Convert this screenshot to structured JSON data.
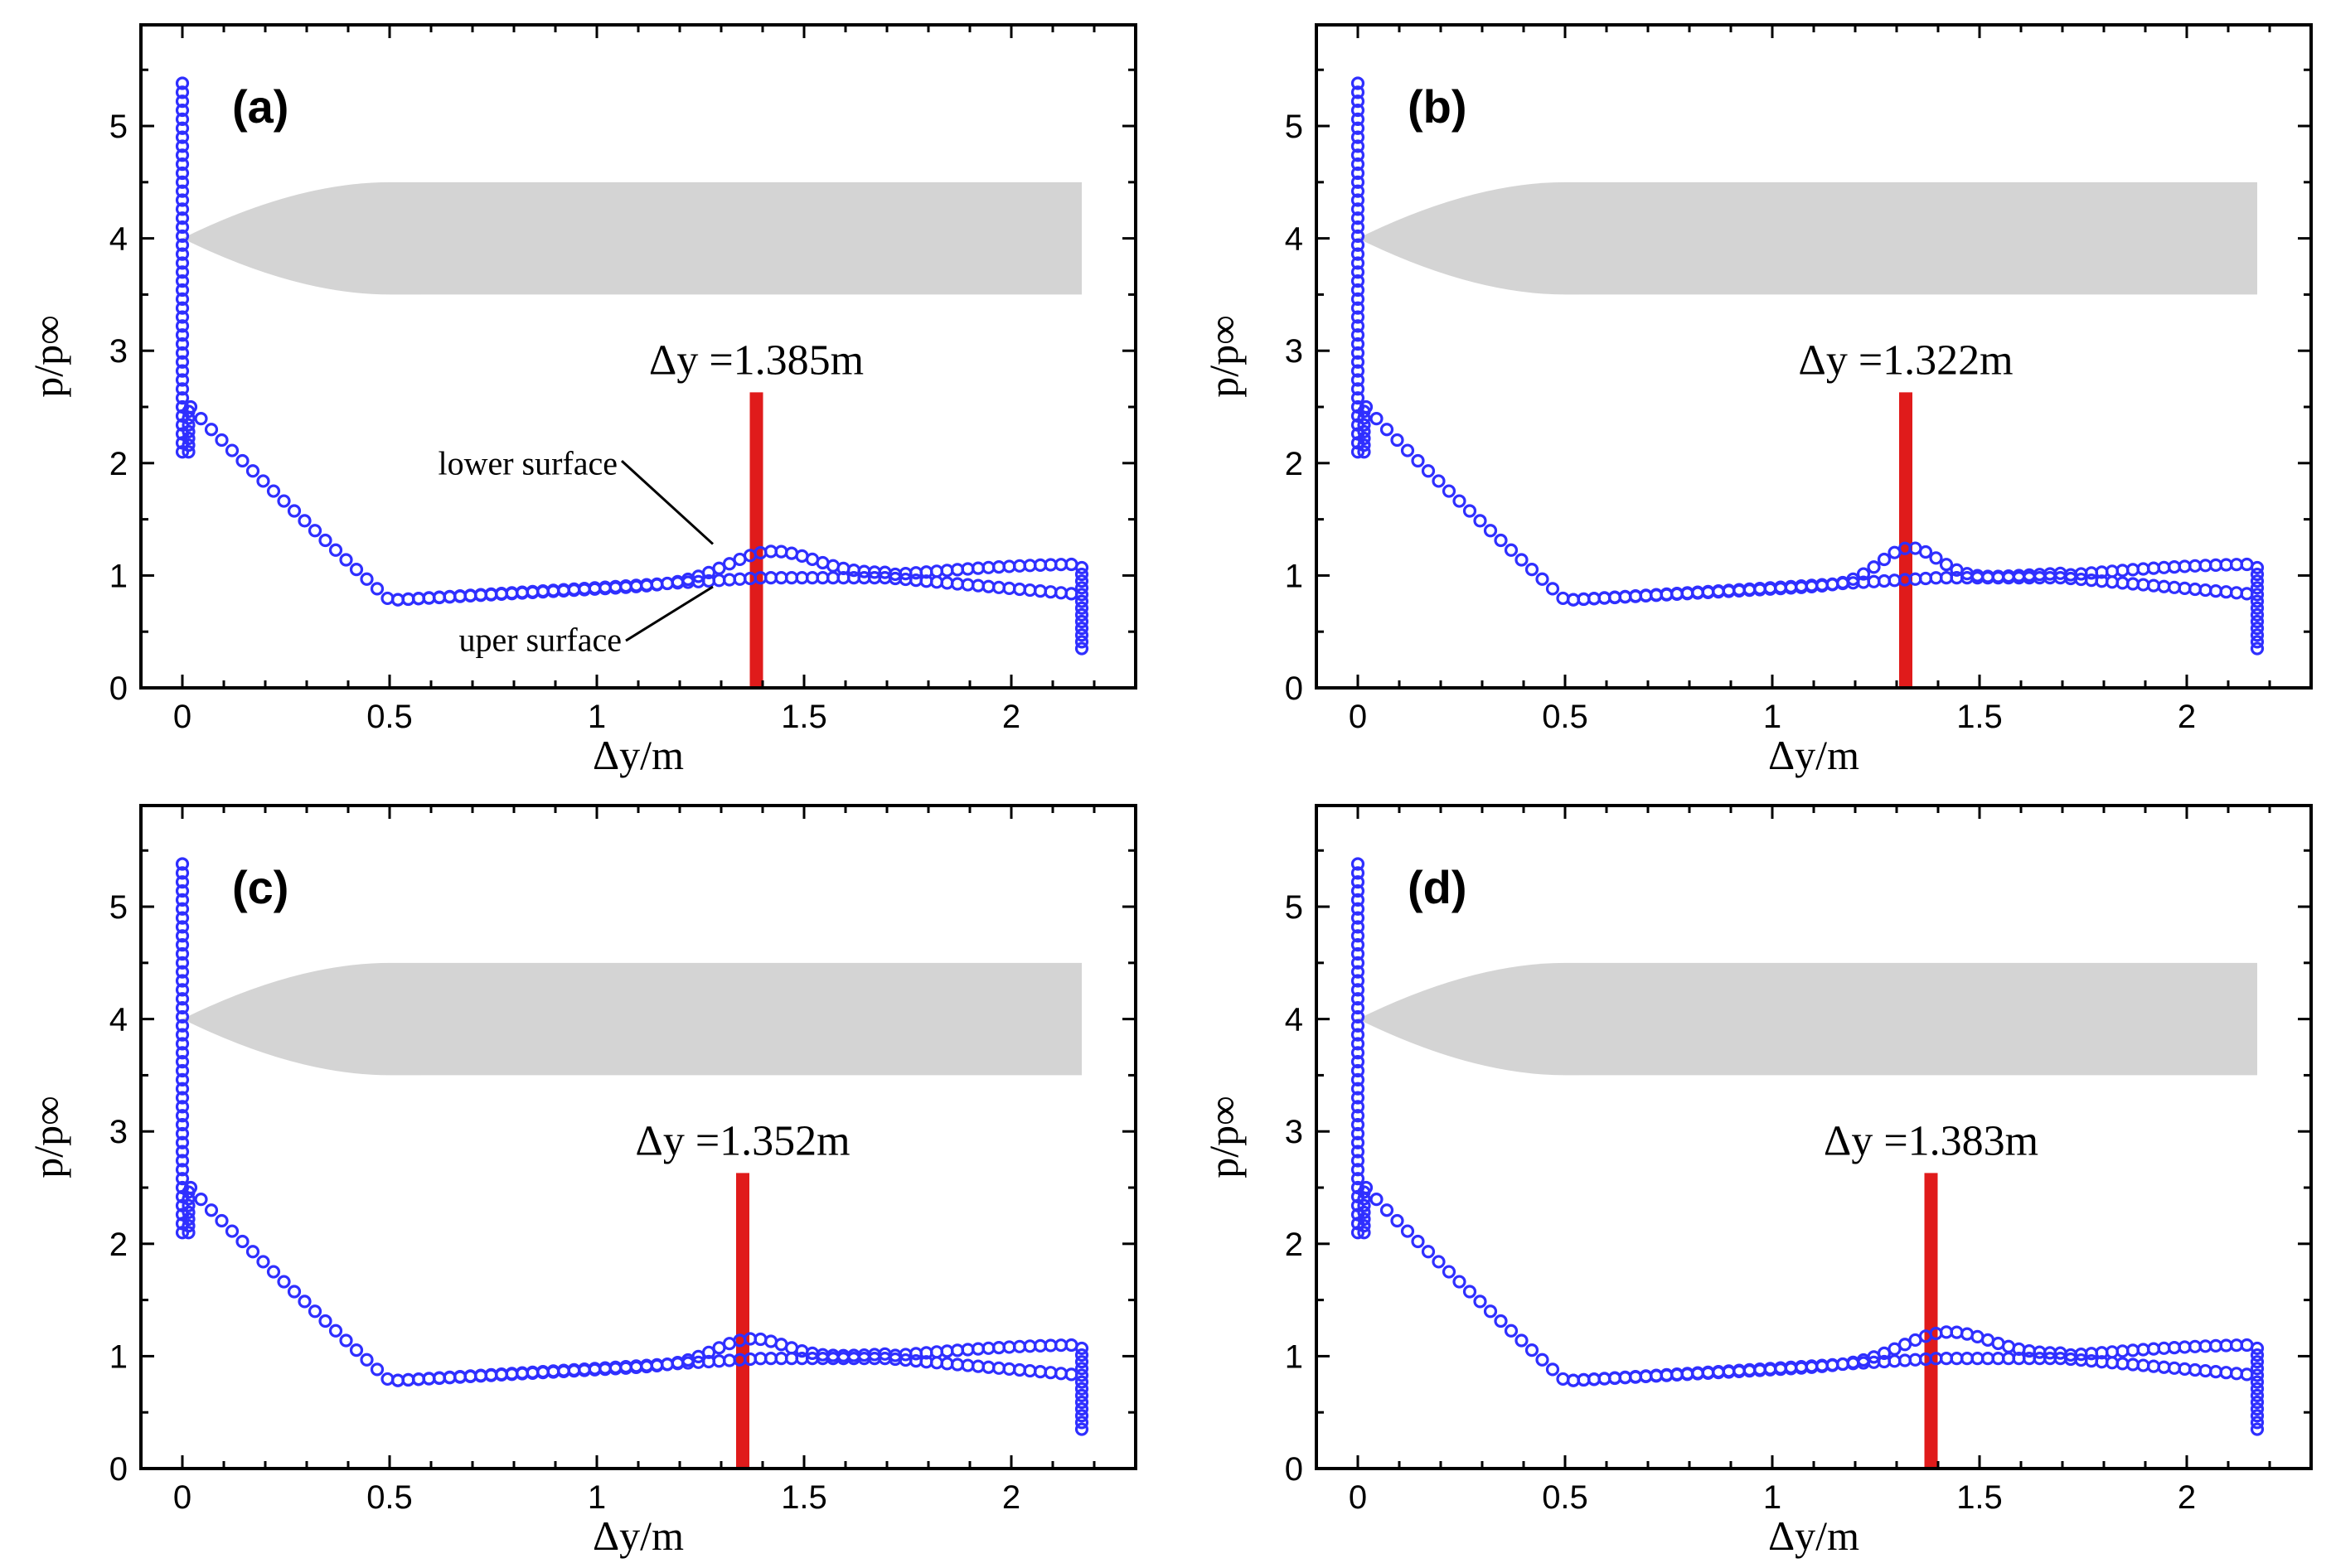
{
  "chart_data": [
    {
      "type": "scatter",
      "panel_label": "(a)",
      "xlabel": "Δy/m",
      "ylabel": "p/p∞",
      "xlim": [
        -0.1,
        2.3
      ],
      "ylim": [
        0,
        5.9
      ],
      "x_ticks": [
        0,
        0.5,
        1,
        1.5,
        2
      ],
      "x_tick_labels": [
        "0",
        "0.5",
        "1",
        "1.5",
        "2"
      ],
      "y_ticks": [
        0,
        1,
        2,
        3,
        4,
        5
      ],
      "y_tick_labels": [
        "0",
        "1",
        "2",
        "3",
        "4",
        "5"
      ],
      "marker_position": 1.385,
      "marker_label": "Δy =1.385m",
      "bump": {
        "x": 1.42,
        "amplitude": 0.25,
        "width": 0.15
      },
      "legend": {
        "lower": "lower surface",
        "upper": "uper surface"
      },
      "series": [
        {
          "name": "lower surface",
          "x": [
            0.0,
            0.03,
            0.06,
            0.1,
            0.15,
            0.2,
            0.3,
            0.4,
            0.5,
            0.6,
            0.8,
            1.0,
            1.2,
            1.3,
            1.4,
            1.5,
            1.6,
            1.8,
            2.0,
            2.15
          ],
          "y": [
            2.5,
            2.45,
            2.35,
            2.2,
            1.95,
            1.7,
            1.3,
            0.95,
            0.78,
            0.82,
            0.88,
            0.93,
            0.98,
            1.15,
            1.22,
            1.18,
            1.05,
            1.02,
            1.1,
            1.08
          ]
        },
        {
          "name": "upper surface",
          "x": [
            0.0,
            0.03,
            0.06,
            0.1,
            0.15,
            0.2,
            0.3,
            0.4,
            0.5,
            0.6,
            0.8,
            1.0,
            1.2,
            1.3,
            1.4,
            1.5,
            1.6,
            1.8,
            2.0,
            2.15
          ],
          "y": [
            2.5,
            2.45,
            2.35,
            2.2,
            1.95,
            1.7,
            1.3,
            0.95,
            0.78,
            0.82,
            0.88,
            0.93,
            0.95,
            0.96,
            0.97,
            0.98,
            0.99,
            0.98,
            0.88,
            0.82
          ]
        }
      ]
    },
    {
      "type": "scatter",
      "panel_label": "(b)",
      "xlabel": "Δy/m",
      "ylabel": "p/p∞",
      "xlim": [
        -0.1,
        2.3
      ],
      "ylim": [
        0,
        5.9
      ],
      "x_ticks": [
        0,
        0.5,
        1,
        1.5,
        2
      ],
      "x_tick_labels": [
        "0",
        "0.5",
        "1",
        "1.5",
        "2"
      ],
      "y_ticks": [
        0,
        1,
        2,
        3,
        4,
        5
      ],
      "y_tick_labels": [
        "0",
        "1",
        "2",
        "3",
        "4",
        "5"
      ],
      "marker_position": 1.322,
      "marker_label": "Δy =1.322m",
      "bump": {
        "x": 1.33,
        "amplitude": 0.3,
        "width": 0.1
      }
    },
    {
      "type": "scatter",
      "panel_label": "(c)",
      "xlabel": "Δy/m",
      "ylabel": "p/p∞",
      "xlim": [
        -0.1,
        2.3
      ],
      "ylim": [
        0,
        5.9
      ],
      "x_ticks": [
        0,
        0.5,
        1,
        1.5,
        2
      ],
      "x_tick_labels": [
        "0",
        "0.5",
        "1",
        "1.5",
        "2"
      ],
      "y_ticks": [
        0,
        1,
        2,
        3,
        4,
        5
      ],
      "y_tick_labels": [
        "0",
        "1",
        "2",
        "3",
        "4",
        "5"
      ],
      "marker_position": 1.352,
      "marker_label": "Δy =1.352m",
      "bump": {
        "x": 1.37,
        "amplitude": 0.2,
        "width": 0.12
      }
    },
    {
      "type": "scatter",
      "panel_label": "(d)",
      "xlabel": "Δy/m",
      "ylabel": "p/p∞",
      "xlim": [
        -0.1,
        2.3
      ],
      "ylim": [
        0,
        5.9
      ],
      "x_ticks": [
        0,
        0.5,
        1,
        1.5,
        2
      ],
      "x_tick_labels": [
        "0",
        "0.5",
        "1",
        "1.5",
        "2"
      ],
      "y_ticks": [
        0,
        1,
        2,
        3,
        4,
        5
      ],
      "y_tick_labels": [
        "0",
        "1",
        "2",
        "3",
        "4",
        "5"
      ],
      "marker_position": 1.383,
      "marker_label": "Δy =1.383m",
      "bump": {
        "x": 1.42,
        "amplitude": 0.25,
        "width": 0.15
      }
    }
  ],
  "colors": {
    "points": "#2f2fff",
    "marker": "#e01b1b",
    "body": "#d4d4d4"
  }
}
